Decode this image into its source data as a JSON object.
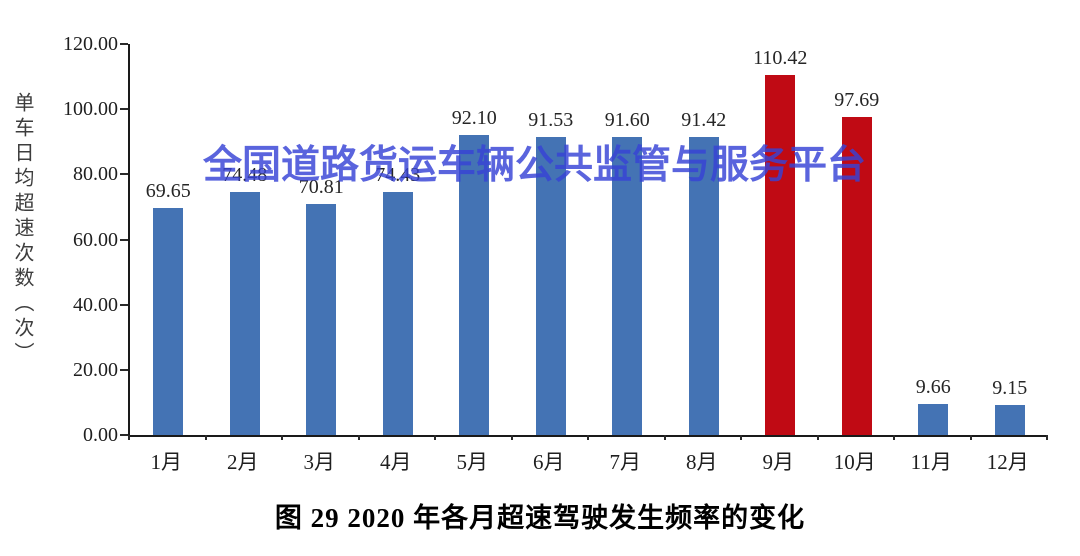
{
  "chart_data": {
    "type": "bar",
    "title": "图 29 2020 年各月超速驾驶发生频率的变化",
    "ylabel": "单车日均超速次数（次）",
    "xlabel": "",
    "categories": [
      "1月",
      "2月",
      "3月",
      "4月",
      "5月",
      "6月",
      "7月",
      "8月",
      "9月",
      "10月",
      "11月",
      "12月"
    ],
    "series": [
      {
        "name": "单车日均超速次数",
        "values": [
          69.65,
          74.48,
          70.81,
          74.43,
          92.1,
          91.53,
          91.6,
          91.42,
          110.42,
          97.69,
          9.66,
          9.15
        ]
      }
    ],
    "value_labels": [
      "69.65",
      "74.48",
      "70.81",
      "74.43",
      "92.10",
      "91.53",
      "91.60",
      "91.42",
      "110.42",
      "97.69",
      "9.66",
      "9.15"
    ],
    "bar_colors": [
      "#4473B4",
      "#4473B4",
      "#4473B4",
      "#4473B4",
      "#4473B4",
      "#4473B4",
      "#4473B4",
      "#4473B4",
      "#C00A14",
      "#C00A14",
      "#4473B4",
      "#4473B4"
    ],
    "ylim": [
      0,
      120
    ],
    "yticks": [
      "120.00",
      "100.00",
      "80.00",
      "60.00",
      "40.00",
      "20.00",
      "0.00"
    ],
    "grid": false,
    "legend": false,
    "colors": {
      "bar_default": "#4473B4",
      "bar_highlight": "#C00A14",
      "axis": "#1a1a1a"
    }
  },
  "watermark": {
    "text": "全国道路货运车辆公共监管与服务平台",
    "color": "#3743D6"
  }
}
